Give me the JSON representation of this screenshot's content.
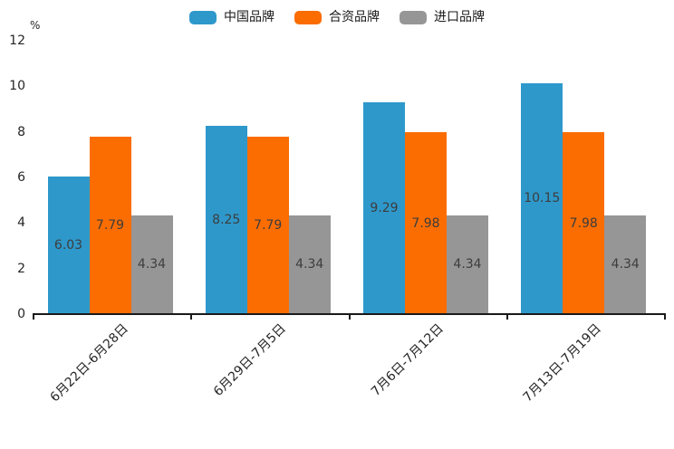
{
  "chart_data": {
    "type": "bar",
    "title": "",
    "ylabel": "%",
    "categories": [
      "6月22日-6月28日",
      "6月29日-7月5日",
      "7月6日-7月12日",
      "7月13日-7月19日"
    ],
    "series": [
      {
        "name": "中国品牌",
        "color": "#2E98CB",
        "values": [
          6.03,
          8.25,
          9.29,
          10.15
        ]
      },
      {
        "name": "合资品牌",
        "color": "#FB6D01",
        "values": [
          7.79,
          7.79,
          7.98,
          7.98
        ]
      },
      {
        "name": "进口品牌",
        "color": "#969696",
        "values": [
          4.34,
          4.34,
          4.34,
          4.34
        ]
      }
    ],
    "ylim": [
      0,
      12
    ],
    "yticks": [
      0,
      2,
      4,
      6,
      8,
      10,
      12
    ],
    "legend_position": "top-center",
    "grid": false,
    "value_labels": "inside-center",
    "value_label_format": "2-decimals",
    "axis_color": "#1a1a1a"
  }
}
